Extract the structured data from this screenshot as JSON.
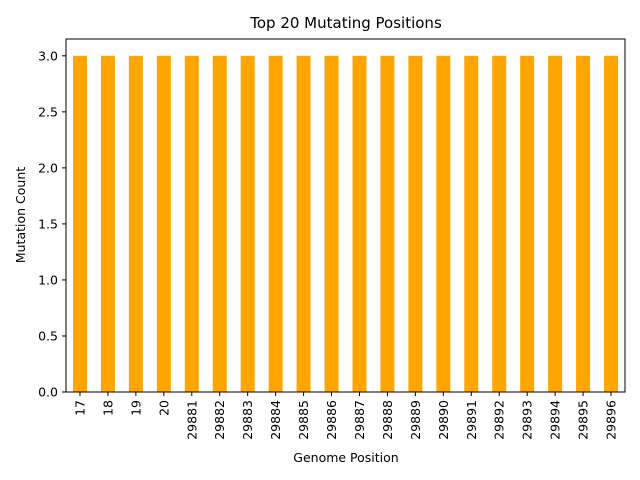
{
  "chart_data": {
    "type": "bar",
    "title": "Top 20 Mutating Positions",
    "xlabel": "Genome Position",
    "ylabel": "Mutation Count",
    "categories": [
      "17",
      "18",
      "19",
      "20",
      "29881",
      "29882",
      "29883",
      "29884",
      "29885",
      "29886",
      "29887",
      "29888",
      "29889",
      "29890",
      "29891",
      "29892",
      "29893",
      "29894",
      "29895",
      "29896"
    ],
    "values": [
      3,
      3,
      3,
      3,
      3,
      3,
      3,
      3,
      3,
      3,
      3,
      3,
      3,
      3,
      3,
      3,
      3,
      3,
      3,
      3
    ],
    "ylim": [
      0,
      3.15
    ],
    "yticks": [
      0.0,
      0.5,
      1.0,
      1.5,
      2.0,
      2.5,
      3.0
    ],
    "ytick_labels": [
      "0.0",
      "0.5",
      "1.0",
      "1.5",
      "2.0",
      "2.5",
      "3.0"
    ],
    "bar_color": "#ffa500",
    "grid": false,
    "legend": "none"
  }
}
